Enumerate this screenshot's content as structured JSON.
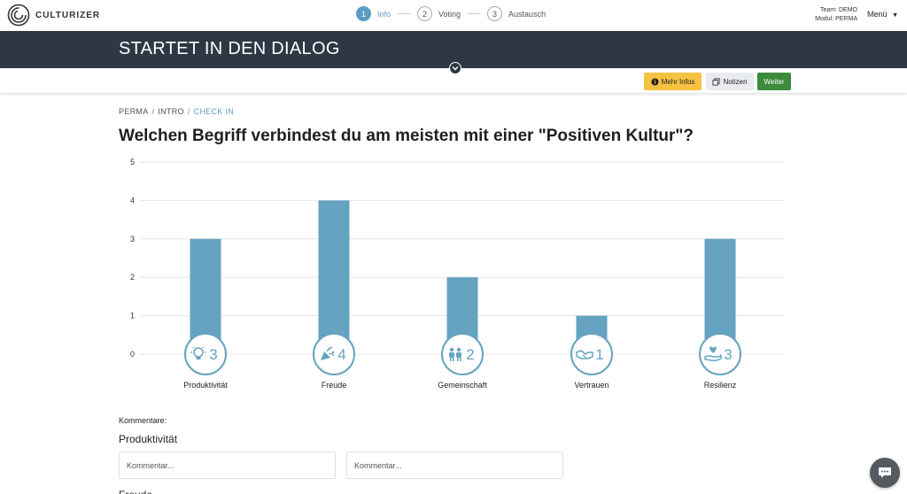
{
  "app": {
    "logo_text": "CULTURIZER",
    "team_line": "Team: DEMO",
    "modul_line": "Modul: PERMA",
    "menu_label": "Menü"
  },
  "steps": [
    {
      "number": "1",
      "label": "Info",
      "active": true
    },
    {
      "number": "2",
      "label": "Voting",
      "active": false
    },
    {
      "number": "3",
      "label": "Austausch",
      "active": false
    }
  ],
  "banner": {
    "title": "STARTET IN DEN DIALOG"
  },
  "actions": {
    "info_label": "Mehr Infos",
    "notes_label": "Notizen",
    "next_label": "Weiter"
  },
  "breadcrumb": [
    "PERMA",
    "INTRO",
    "CHECK IN"
  ],
  "question": "Welchen Begriff verbindest du am meisten mit einer \"Positiven Kultur\"?",
  "colors": {
    "bar": "#65a3c0",
    "accent": "#5b9dc2",
    "banner": "#2d3844",
    "info_button": "#f5c242",
    "next_button": "#3c8a3a"
  },
  "chart_data": {
    "type": "bar",
    "categories": [
      "Produktivität",
      "Freude",
      "Gemeinschaft",
      "Vertrauen",
      "Resilienz"
    ],
    "values": [
      3,
      4,
      2,
      1,
      3
    ],
    "icons": [
      "lightbulb-icon",
      "party-popper-icon",
      "people-icon",
      "handshake-icon",
      "heart-hand-icon"
    ],
    "ylim": [
      0,
      5
    ],
    "yticks": [
      0,
      1,
      2,
      3,
      4,
      5
    ],
    "grid": true
  },
  "comments": {
    "label": "Kommentare:",
    "heading": "Produktivität",
    "placeholders": [
      "Kommentar...",
      "Kommentar..."
    ],
    "next_heading": "Freude"
  }
}
